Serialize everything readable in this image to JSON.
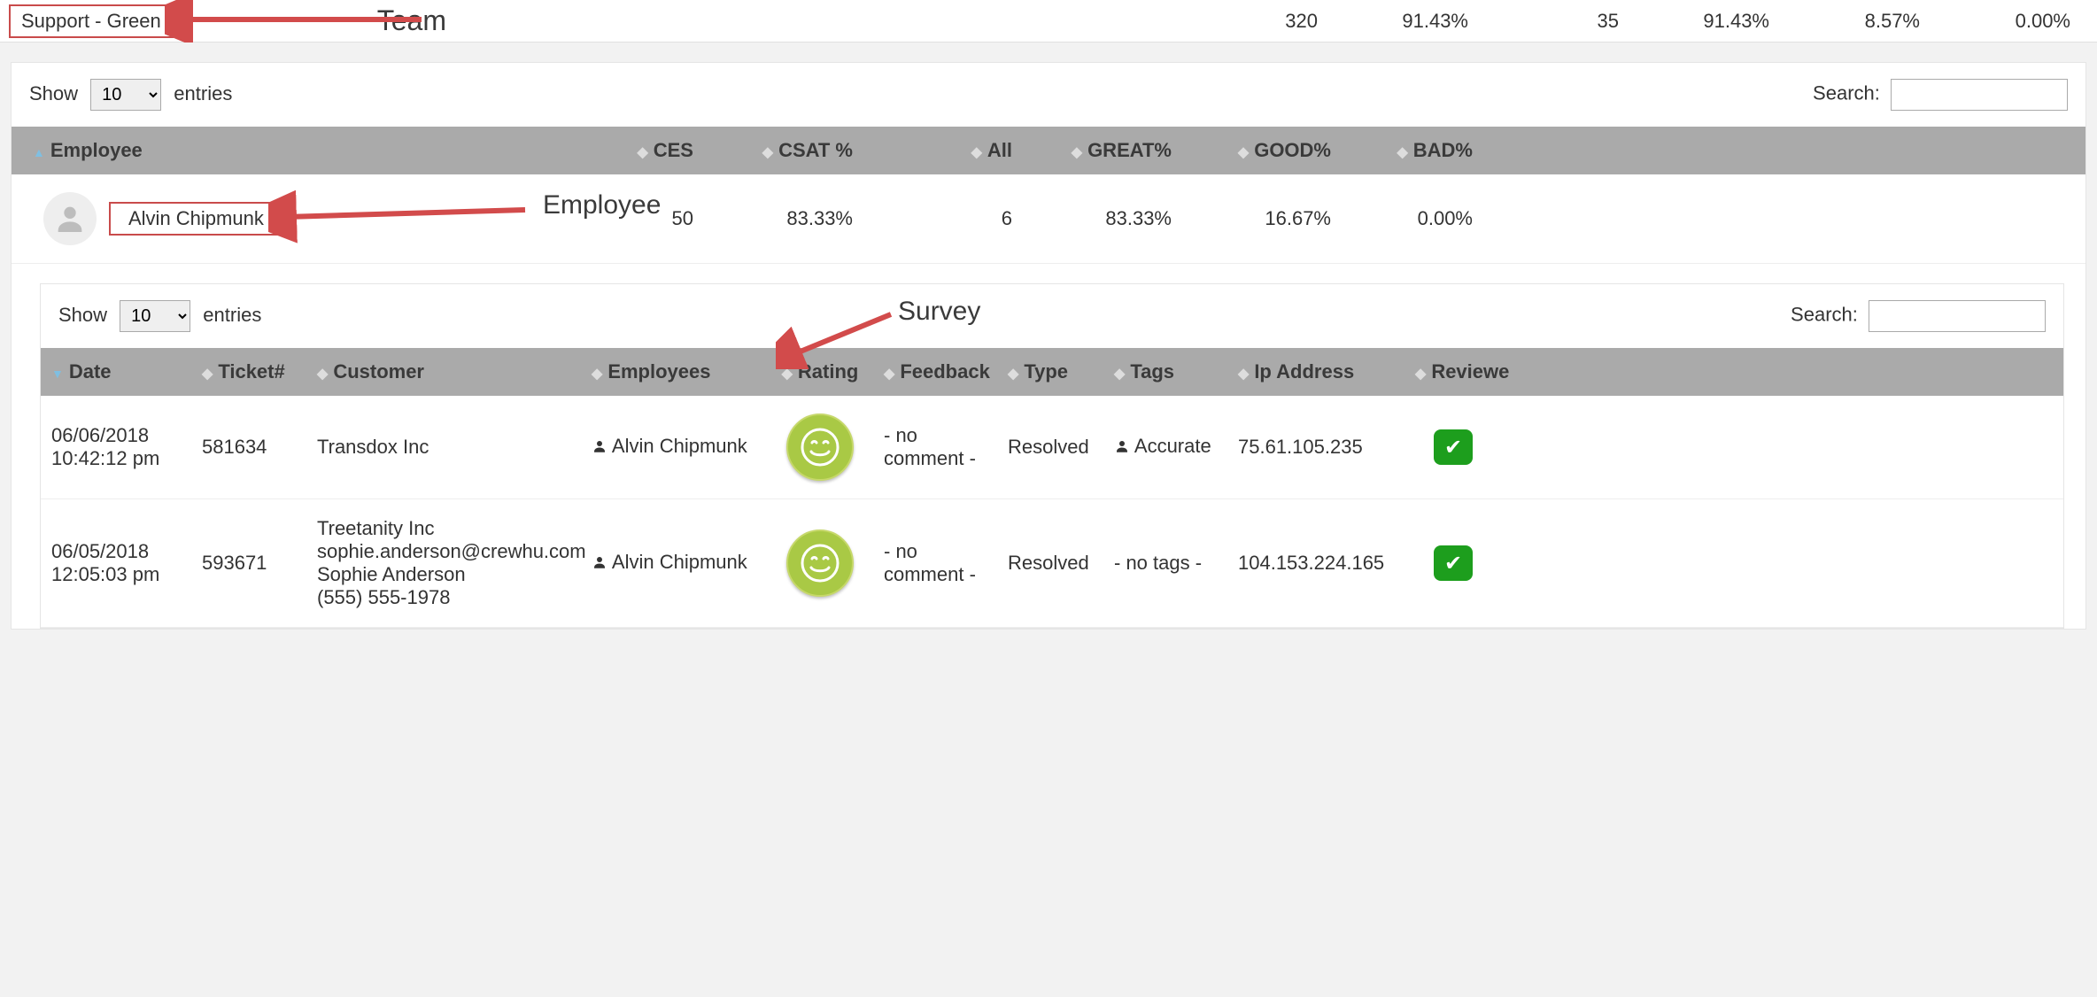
{
  "team": {
    "name": "Support - Green",
    "annotation_label": "Team",
    "stats": {
      "ces": "320",
      "csat": "91.43%",
      "all": "35",
      "great": "91.43%",
      "good": "8.57%",
      "bad": "0.00%"
    }
  },
  "labels": {
    "show": "Show",
    "entries": "entries",
    "search": "Search:"
  },
  "select_options": {
    "size": "10"
  },
  "employee_table": {
    "columns": {
      "employee": "Employee",
      "ces": "CES",
      "csat": "CSAT %",
      "all": "All",
      "great": "GREAT%",
      "good": "GOOD%",
      "bad": "BAD%"
    },
    "annotation_label": "Employee",
    "row": {
      "name": "Alvin Chipmunk",
      "ces": "50",
      "csat": "83.33%",
      "all": "6",
      "great": "83.33%",
      "good": "16.67%",
      "bad": "0.00%"
    }
  },
  "survey_table": {
    "annotation_label": "Survey",
    "columns": {
      "date": "Date",
      "ticket": "Ticket#",
      "customer": "Customer",
      "employees": "Employees",
      "rating": "Rating",
      "feedback": "Feedback",
      "type": "Type",
      "tags": "Tags",
      "ip": "Ip Address",
      "reviewed": "Reviewe"
    },
    "rows": [
      {
        "date": "06/06/2018 10:42:12 pm",
        "ticket": "581634",
        "customer": "Transdox Inc",
        "employee": "Alvin Chipmunk",
        "feedback": "- no comment -",
        "type": "Resolved",
        "tags": "Accurate",
        "tags_has_icon": true,
        "ip": "75.61.105.235"
      },
      {
        "date": "06/05/2018 12:05:03 pm",
        "ticket": "593671",
        "customer": "Treetanity Inc\nsophie.anderson@crewhu.com\nSophie Anderson\n(555) 555-1978",
        "employee": "Alvin Chipmunk",
        "feedback": "- no comment -",
        "type": "Resolved",
        "tags": "- no tags -",
        "tags_has_icon": false,
        "ip": "104.153.224.165"
      }
    ]
  },
  "colors": {
    "annotation_red": "#d24b4b",
    "header_gray": "#aaaaaa",
    "smile_fill": "#a9c945",
    "smile_border": "#c6d86a",
    "check_green": "#1d9e1d",
    "bg": "#f2f2f2"
  }
}
